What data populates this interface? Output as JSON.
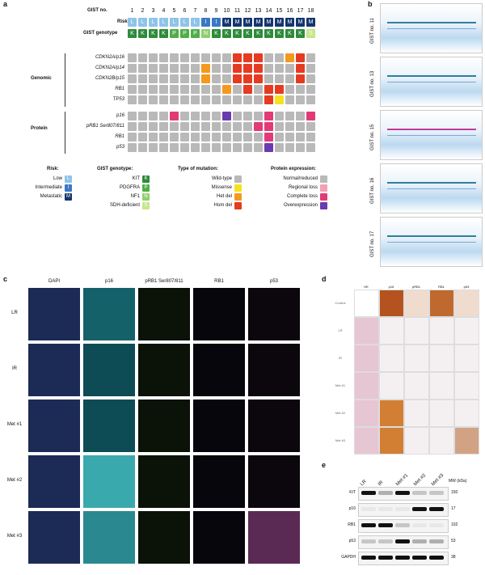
{
  "panel_labels": {
    "a": "a",
    "b": "b",
    "c": "c",
    "d": "d",
    "e": "e"
  },
  "panel_a": {
    "header_gist_no": "GIST no.",
    "header_risk": "Risk",
    "header_genotype": "GIST genotype",
    "gist_numbers": [
      "1",
      "2",
      "3",
      "4",
      "5",
      "6",
      "7",
      "8",
      "9",
      "10",
      "11",
      "12",
      "13",
      "14",
      "15",
      "16",
      "17",
      "18"
    ],
    "risk": [
      "L",
      "L",
      "L",
      "L",
      "L",
      "L",
      "L",
      "I",
      "I",
      "M",
      "M",
      "M",
      "M",
      "M",
      "M",
      "M",
      "M",
      "M"
    ],
    "genotype": [
      "K",
      "K",
      "K",
      "K",
      "P",
      "P",
      "P",
      "N",
      "K",
      "K",
      "K",
      "K",
      "K",
      "K",
      "K",
      "K",
      "K",
      "S"
    ],
    "genomic_group": "Genomic",
    "protein_group": "Protein",
    "genomic_rows": [
      {
        "label": "CDKN2A/p16",
        "cells": [
          "g",
          "g",
          "g",
          "g",
          "g",
          "g",
          "g",
          "g",
          "g",
          "g",
          "r",
          "r",
          "r",
          "g",
          "g",
          "o",
          "r",
          "g"
        ]
      },
      {
        "label": "CDKN2A/p14",
        "cells": [
          "g",
          "g",
          "g",
          "g",
          "g",
          "g",
          "g",
          "o",
          "g",
          "g",
          "r",
          "r",
          "r",
          "g",
          "g",
          "g",
          "r",
          "g"
        ]
      },
      {
        "label": "CDKN2B/p15",
        "cells": [
          "g",
          "g",
          "g",
          "g",
          "g",
          "g",
          "g",
          "o",
          "g",
          "g",
          "r",
          "r",
          "r",
          "g",
          "g",
          "g",
          "r",
          "g"
        ]
      },
      {
        "label": "RB1",
        "cells": [
          "g",
          "g",
          "g",
          "g",
          "g",
          "g",
          "g",
          "g",
          "g",
          "o",
          "g",
          "r",
          "g",
          "r",
          "r",
          "g",
          "g",
          "g"
        ]
      },
      {
        "label": "TP53",
        "cells": [
          "g",
          "g",
          "g",
          "g",
          "g",
          "g",
          "g",
          "g",
          "g",
          "g",
          "g",
          "g",
          "g",
          "r",
          "y",
          "g",
          "g",
          "g"
        ]
      }
    ],
    "protein_rows": [
      {
        "label": "p16",
        "cells": [
          "g",
          "g",
          "g",
          "g",
          "m",
          "g",
          "g",
          "g",
          "g",
          "v",
          "g",
          "g",
          "g",
          "m",
          "g",
          "g",
          "g",
          "m"
        ]
      },
      {
        "label": "pRB1 Ser807/811",
        "cells": [
          "g",
          "g",
          "g",
          "g",
          "g",
          "g",
          "g",
          "g",
          "g",
          "g",
          "g",
          "g",
          "m",
          "m",
          "g",
          "g",
          "g",
          "g"
        ]
      },
      {
        "label": "RB1",
        "cells": [
          "g",
          "g",
          "g",
          "g",
          "g",
          "g",
          "g",
          "g",
          "g",
          "g",
          "g",
          "g",
          "g",
          "m",
          "g",
          "g",
          "g",
          "g"
        ]
      },
      {
        "label": "p53",
        "cells": [
          "g",
          "g",
          "g",
          "g",
          "g",
          "g",
          "g",
          "g",
          "g",
          "g",
          "g",
          "g",
          "g",
          "v",
          "g",
          "g",
          "g",
          "g"
        ]
      }
    ],
    "legend_risk_title": "Risk:",
    "legend_risk": [
      {
        "label": "Low",
        "code": "L",
        "color": "#8fc3ea"
      },
      {
        "label": "Intermediate",
        "code": "I",
        "color": "#3a78c3"
      },
      {
        "label": "Metastatic",
        "code": "M",
        "color": "#14356e"
      }
    ],
    "legend_genotype_title": "GIST genotype:",
    "legend_genotype": [
      {
        "label": "KIT",
        "code": "K",
        "color": "#2e8b3a"
      },
      {
        "label": "PDGFRA",
        "code": "P",
        "color": "#4fae46"
      },
      {
        "label": "NF1",
        "code": "N",
        "color": "#8fcf6e"
      },
      {
        "label": "SDH-deficient",
        "code": "S",
        "color": "#c6e68a"
      }
    ],
    "legend_mutation_title": "Type of mutation:",
    "legend_mutation": [
      {
        "label": "Wild-type",
        "color": "#b9b9b9"
      },
      {
        "label": "Missense",
        "color": "#f5e11f"
      },
      {
        "label": "Het del",
        "color": "#f39a1e"
      },
      {
        "label": "Hom del",
        "color": "#e53b22"
      }
    ],
    "legend_protein_title": "Protein expression:",
    "legend_protein": [
      {
        "label": "Normal/reduced",
        "color": "#b9b9b9"
      },
      {
        "label": "Regional loss",
        "color": "#f2a0b6"
      },
      {
        "label": "Complete loss",
        "color": "#e23a77"
      },
      {
        "label": "Overexpression",
        "color": "#6a3bb0"
      }
    ]
  },
  "panel_b": {
    "labels": [
      "GIST no. 11",
      "GIST no. 13",
      "GIST no. 15",
      "GIST no. 16",
      "GIST no. 17"
    ]
  },
  "panel_c": {
    "columns": [
      "DAPI",
      "p16",
      "pRB1 Ser807/811",
      "RB1",
      "p53"
    ],
    "rows": [
      "LR",
      "IR",
      "Met #1",
      "Met #2",
      "Met #3"
    ]
  },
  "panel_d": {
    "columns": [
      "HE",
      "p16",
      "pRB1",
      "RB1",
      "p53"
    ],
    "rows": [
      "Control",
      "LR",
      "IR",
      "Met #1",
      "Met #2",
      "Met #3"
    ]
  },
  "panel_e": {
    "lanes": [
      "LR",
      "IR",
      "Met #1",
      "Met #2",
      "Met #3"
    ],
    "mw_header": "MW (kDa)",
    "blots": [
      {
        "label": "KIT",
        "mw": "150"
      },
      {
        "label": "p16",
        "mw": "17"
      },
      {
        "label": "RB1",
        "mw": "102"
      },
      {
        "label": "p53",
        "mw": "53"
      },
      {
        "label": "GAPDH",
        "mw": "38"
      }
    ]
  }
}
